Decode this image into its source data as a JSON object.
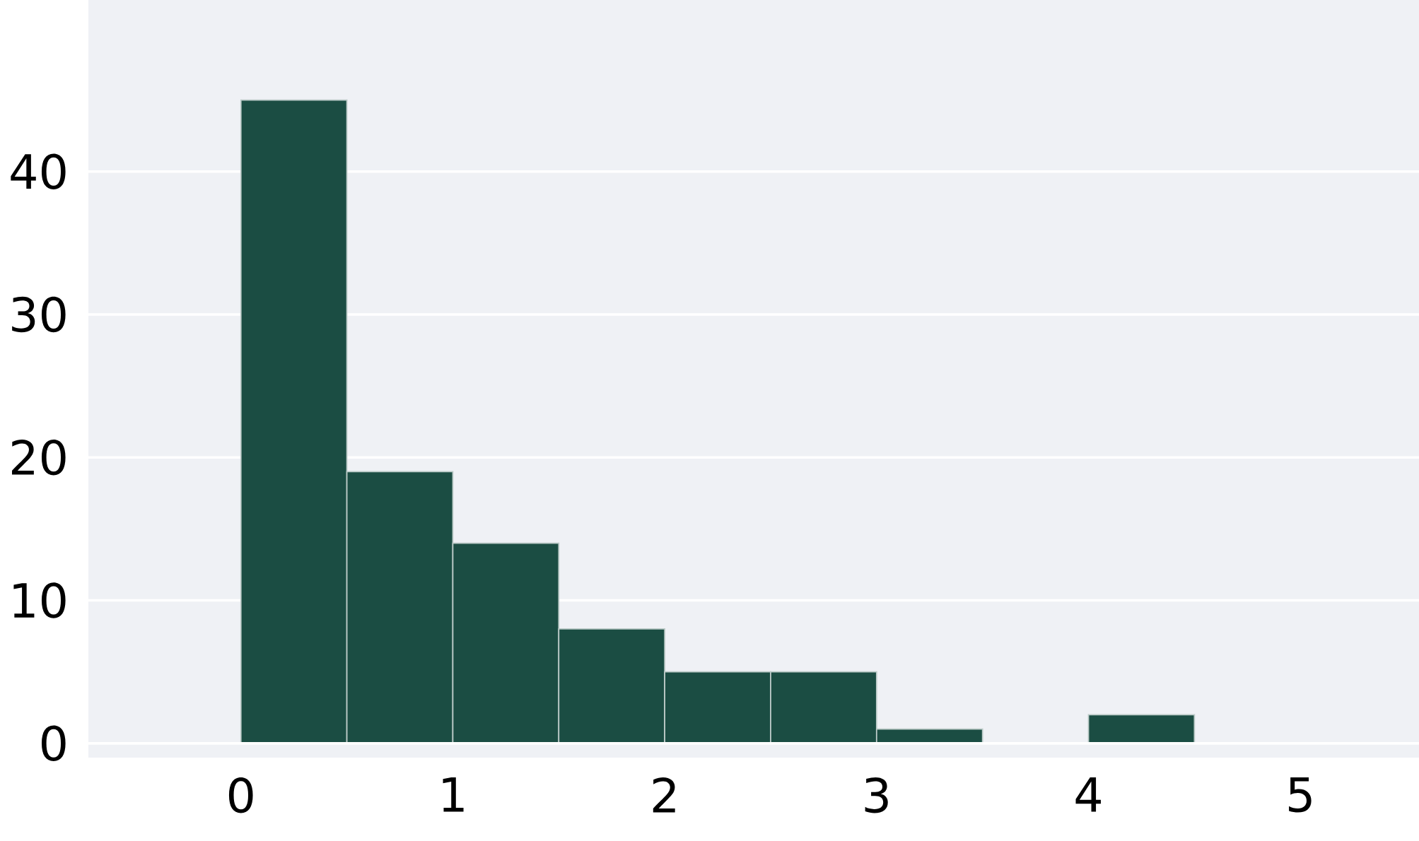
{
  "chart_data": {
    "type": "histogram",
    "bins": [
      0,
      0.5,
      1,
      1.5,
      2,
      2.5,
      3,
      3.5,
      4,
      4.5
    ],
    "values": [
      45,
      19,
      14,
      8,
      5,
      5,
      1,
      0,
      2
    ],
    "color": "#1b4d43",
    "xlim": [
      -0.72,
      5.56
    ],
    "xticks": [
      0,
      1,
      2,
      3,
      4,
      5
    ],
    "ylim": [
      -1,
      52
    ],
    "yticks": [
      0,
      10,
      20,
      30,
      40
    ],
    "grid": "y"
  }
}
